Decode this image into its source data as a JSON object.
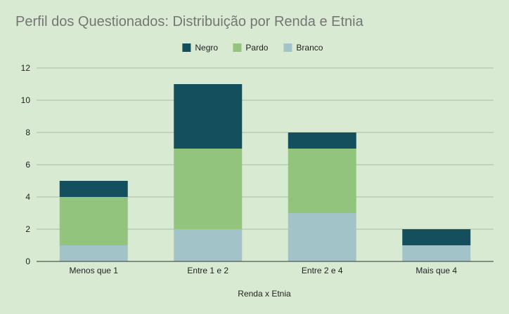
{
  "chart_data": {
    "type": "bar",
    "stacked": true,
    "title": "Perfil dos Questionados: Distribuição por Renda e Etnia",
    "xlabel": "Renda x Etnia",
    "ylabel": "",
    "ylim": [
      0,
      12
    ],
    "yticks": [
      "0",
      "2",
      "4",
      "6",
      "8",
      "10",
      "12"
    ],
    "grid": true,
    "legend_position": "top",
    "categories": [
      "Menos que 1",
      "Entre 1 e 2",
      "Entre 2 e 4",
      "Mais que 4"
    ],
    "series": [
      {
        "name": "Branco",
        "color": "#a2c4c9",
        "values": [
          1,
          2,
          3,
          1
        ]
      },
      {
        "name": "Pardo",
        "color": "#93c47d",
        "values": [
          3,
          5,
          4,
          0
        ]
      },
      {
        "name": "Negro",
        "color": "#134f5c",
        "values": [
          1,
          4,
          1,
          1
        ]
      }
    ],
    "legend_order": [
      "Negro",
      "Pardo",
      "Branco"
    ]
  },
  "colors": {
    "background": "#d9ead3",
    "gridline": "#a9bfa3",
    "axis": "#333333",
    "title": "#757575",
    "text": "#222222"
  }
}
